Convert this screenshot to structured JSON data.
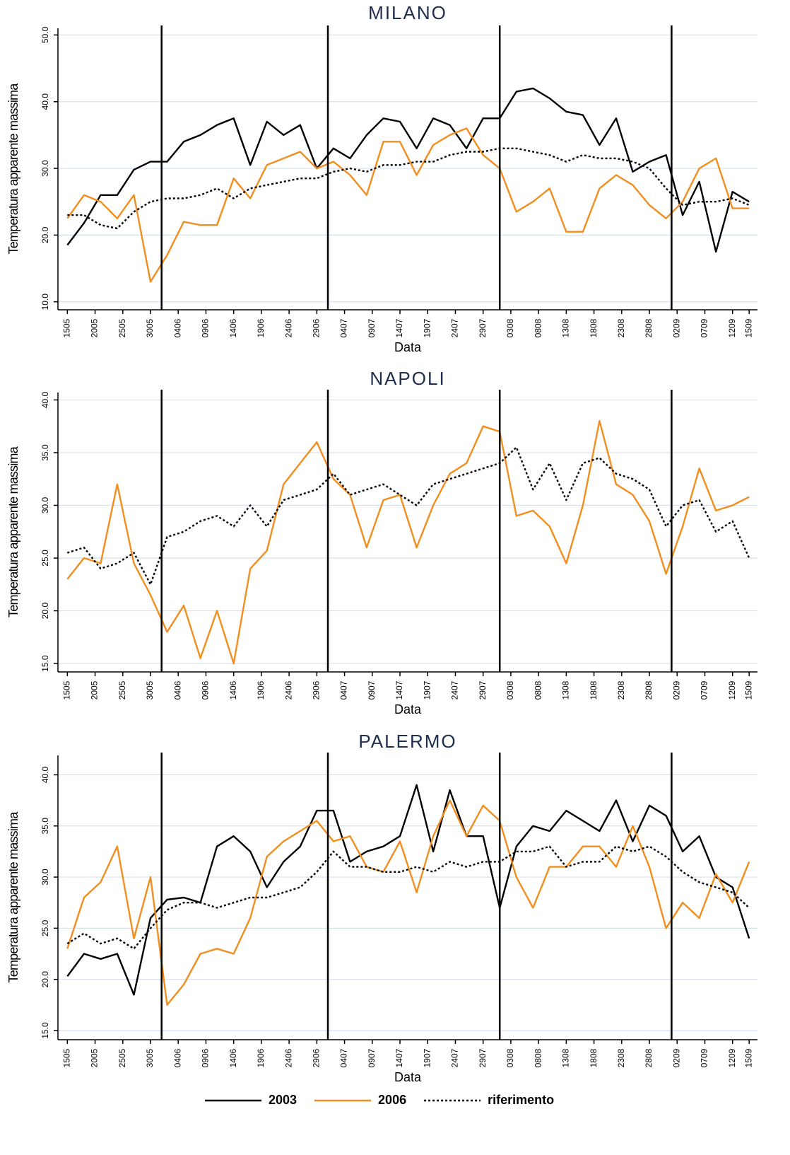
{
  "chart_data": [
    {
      "type": "line",
      "title": "MILANO",
      "xlabel": "Data",
      "ylabel": "Temperatura apparente massima",
      "x": [
        0,
        3,
        6,
        9,
        12,
        15,
        18,
        21,
        24,
        27,
        30,
        33,
        36,
        39,
        42,
        45,
        48,
        51,
        54,
        57,
        60,
        63,
        66,
        69,
        72,
        75,
        78,
        81,
        84,
        87,
        90,
        93,
        96,
        99,
        102,
        105,
        108,
        111,
        114,
        117,
        120,
        123
      ],
      "xlim": [
        -1.7,
        124.5
      ],
      "xticks": [
        {
          "value": 0,
          "label": "1505"
        },
        {
          "value": 5,
          "label": "2005"
        },
        {
          "value": 10,
          "label": "2505"
        },
        {
          "value": 15,
          "label": "3005"
        },
        {
          "value": 20,
          "label": "0406"
        },
        {
          "value": 25,
          "label": "0906"
        },
        {
          "value": 30,
          "label": "1406"
        },
        {
          "value": 35,
          "label": "1906"
        },
        {
          "value": 40,
          "label": "2406"
        },
        {
          "value": 45,
          "label": "2906"
        },
        {
          "value": 50,
          "label": "0407"
        },
        {
          "value": 55,
          "label": "0907"
        },
        {
          "value": 60,
          "label": "1407"
        },
        {
          "value": 65,
          "label": "1907"
        },
        {
          "value": 70,
          "label": "2407"
        },
        {
          "value": 75,
          "label": "2907"
        },
        {
          "value": 80,
          "label": "0308"
        },
        {
          "value": 85,
          "label": "0808"
        },
        {
          "value": 90,
          "label": "1308"
        },
        {
          "value": 95,
          "label": "1808"
        },
        {
          "value": 100,
          "label": "2308"
        },
        {
          "value": 105,
          "label": "2808"
        },
        {
          "value": 110,
          "label": "0209"
        },
        {
          "value": 115,
          "label": "0709"
        },
        {
          "value": 120,
          "label": "1209"
        },
        {
          "value": 123,
          "label": "1509"
        }
      ],
      "ylim": [
        8.8,
        51
      ],
      "yticks": [
        {
          "value": 10,
          "label": "10.0"
        },
        {
          "value": 20,
          "label": "20.0"
        },
        {
          "value": 30,
          "label": "30.0"
        },
        {
          "value": 40,
          "label": "40.0"
        },
        {
          "value": 50,
          "label": "50.0"
        }
      ],
      "grid": true,
      "vlines": [
        17,
        47,
        78,
        109
      ],
      "series": [
        {
          "name": "2003",
          "color": "#000000",
          "style": "solid",
          "values": [
            18.5,
            21.8,
            26,
            26,
            29.8,
            31,
            31,
            34,
            35,
            36.5,
            37.5,
            30.5,
            37,
            35,
            36.5,
            30,
            33,
            31.5,
            35,
            37.5,
            37,
            33,
            37.5,
            36.5,
            33,
            37.5,
            37.5,
            41.5,
            42,
            40.5,
            38.5,
            38,
            33.5,
            37.5,
            29.5,
            31,
            32,
            23,
            28,
            17.5,
            26.5,
            25
          ]
        },
        {
          "name": "2006",
          "color": "#f28e1e",
          "style": "solid",
          "values": [
            22.5,
            26,
            25,
            22.5,
            26,
            13,
            17,
            22,
            21.5,
            21.5,
            28.5,
            25.5,
            30.5,
            31.5,
            32.5,
            30,
            31,
            29,
            26,
            34,
            34,
            29,
            33.5,
            35,
            36,
            32,
            30,
            23.5,
            25,
            27,
            20.5,
            20.5,
            27,
            29,
            27.5,
            24.5,
            22.5,
            25,
            30,
            31.5,
            24,
            24
          ]
        },
        {
          "name": "riferimento",
          "color": "#000000",
          "style": "dotted",
          "values": [
            23,
            23,
            21.5,
            21,
            23.5,
            25,
            25.5,
            25.5,
            26,
            27,
            25.5,
            27,
            27.5,
            28,
            28.5,
            28.5,
            29.5,
            30,
            29.5,
            30.5,
            30.5,
            31,
            31,
            32,
            32.5,
            32.5,
            33,
            33,
            32.5,
            32,
            31,
            32,
            31.5,
            31.5,
            31,
            30,
            27,
            24.5,
            25,
            25,
            25.5,
            24.5
          ]
        }
      ],
      "legend": "bottom"
    },
    {
      "type": "line",
      "title": "NAPOLI",
      "xlabel": "Data",
      "ylabel": "Temperatura apparente massima",
      "x": [
        0,
        3,
        6,
        9,
        12,
        15,
        18,
        21,
        24,
        27,
        30,
        33,
        36,
        39,
        42,
        45,
        48,
        51,
        54,
        57,
        60,
        63,
        66,
        69,
        72,
        75,
        78,
        81,
        84,
        87,
        90,
        93,
        96,
        99,
        102,
        105,
        108,
        111,
        114,
        117,
        120,
        123
      ],
      "xlim": [
        -1.7,
        124.5
      ],
      "xticks": [
        {
          "value": 0,
          "label": "1505"
        },
        {
          "value": 5,
          "label": "2005"
        },
        {
          "value": 10,
          "label": "2505"
        },
        {
          "value": 15,
          "label": "3005"
        },
        {
          "value": 20,
          "label": "0406"
        },
        {
          "value": 25,
          "label": "0906"
        },
        {
          "value": 30,
          "label": "1406"
        },
        {
          "value": 35,
          "label": "1906"
        },
        {
          "value": 40,
          "label": "2406"
        },
        {
          "value": 45,
          "label": "2906"
        },
        {
          "value": 50,
          "label": "0407"
        },
        {
          "value": 55,
          "label": "0907"
        },
        {
          "value": 60,
          "label": "1407"
        },
        {
          "value": 65,
          "label": "1907"
        },
        {
          "value": 70,
          "label": "2407"
        },
        {
          "value": 75,
          "label": "2907"
        },
        {
          "value": 80,
          "label": "0308"
        },
        {
          "value": 85,
          "label": "0808"
        },
        {
          "value": 90,
          "label": "1308"
        },
        {
          "value": 95,
          "label": "1808"
        },
        {
          "value": 100,
          "label": "2308"
        },
        {
          "value": 105,
          "label": "2808"
        },
        {
          "value": 110,
          "label": "0209"
        },
        {
          "value": 115,
          "label": "0709"
        },
        {
          "value": 120,
          "label": "1209"
        },
        {
          "value": 123,
          "label": "1509"
        }
      ],
      "ylim": [
        14.2,
        40.7
      ],
      "yticks": [
        {
          "value": 15,
          "label": "15.0"
        },
        {
          "value": 20,
          "label": "20.0"
        },
        {
          "value": 25,
          "label": "25.0"
        },
        {
          "value": 30,
          "label": "30.0"
        },
        {
          "value": 35,
          "label": "35.0"
        },
        {
          "value": 40,
          "label": "40.0"
        }
      ],
      "grid": true,
      "vlines": [
        17,
        47,
        78,
        109
      ],
      "series": [
        {
          "name": "2006",
          "color": "#f28e1e",
          "style": "solid",
          "values": [
            23,
            25,
            24.5,
            32,
            24.5,
            21.5,
            18,
            20.5,
            15.5,
            20,
            15,
            24,
            25.7,
            32,
            34,
            36,
            32.5,
            31,
            26,
            30.5,
            31,
            26,
            30,
            33,
            34,
            37.5,
            37,
            29,
            29.5,
            28,
            24.5,
            30,
            38,
            32,
            31,
            28.5,
            23.5,
            28,
            33.5,
            29.5,
            30,
            30.8
          ]
        },
        {
          "name": "riferimento",
          "color": "#000000",
          "style": "dotted",
          "values": [
            25.5,
            26,
            24,
            24.5,
            25.5,
            22.5,
            27,
            27.5,
            28.5,
            29,
            28,
            30,
            28,
            30.5,
            31,
            31.5,
            33,
            31,
            31.5,
            32,
            31,
            30,
            32,
            32.5,
            33,
            33.5,
            34,
            35.5,
            31.5,
            34,
            30.5,
            34,
            34.5,
            33,
            32.5,
            31.5,
            28,
            30,
            30.5,
            27.5,
            28.5,
            25
          ]
        }
      ]
    },
    {
      "type": "line",
      "title": "PALERMO",
      "xlabel": "Data",
      "ylabel": "Temperatura apparente massima",
      "x": [
        0,
        3,
        6,
        9,
        12,
        15,
        18,
        21,
        24,
        27,
        30,
        33,
        36,
        39,
        42,
        45,
        48,
        51,
        54,
        57,
        60,
        63,
        66,
        69,
        72,
        75,
        78,
        81,
        84,
        87,
        90,
        93,
        96,
        99,
        102,
        105,
        108,
        111,
        114,
        117,
        120,
        123
      ],
      "xlim": [
        -1.7,
        124.5
      ],
      "xticks": [
        {
          "value": 0,
          "label": "1505"
        },
        {
          "value": 5,
          "label": "2005"
        },
        {
          "value": 10,
          "label": "2505"
        },
        {
          "value": 15,
          "label": "3005"
        },
        {
          "value": 20,
          "label": "0406"
        },
        {
          "value": 25,
          "label": "0906"
        },
        {
          "value": 30,
          "label": "1406"
        },
        {
          "value": 35,
          "label": "1906"
        },
        {
          "value": 40,
          "label": "2406"
        },
        {
          "value": 45,
          "label": "2906"
        },
        {
          "value": 50,
          "label": "0407"
        },
        {
          "value": 55,
          "label": "0907"
        },
        {
          "value": 60,
          "label": "1407"
        },
        {
          "value": 65,
          "label": "1907"
        },
        {
          "value": 70,
          "label": "2407"
        },
        {
          "value": 75,
          "label": "2907"
        },
        {
          "value": 80,
          "label": "0308"
        },
        {
          "value": 85,
          "label": "0808"
        },
        {
          "value": 90,
          "label": "1308"
        },
        {
          "value": 95,
          "label": "1808"
        },
        {
          "value": 100,
          "label": "2308"
        },
        {
          "value": 105,
          "label": "2808"
        },
        {
          "value": 110,
          "label": "0209"
        },
        {
          "value": 115,
          "label": "0709"
        },
        {
          "value": 120,
          "label": "1209"
        },
        {
          "value": 123,
          "label": "1509"
        }
      ],
      "ylim": [
        14.1,
        41.9
      ],
      "yticks": [
        {
          "value": 15,
          "label": "15.0"
        },
        {
          "value": 20,
          "label": "20.0"
        },
        {
          "value": 25,
          "label": "25.0"
        },
        {
          "value": 30,
          "label": "30.0"
        },
        {
          "value": 35,
          "label": "35.0"
        },
        {
          "value": 40,
          "label": "40.0"
        }
      ],
      "grid": true,
      "vlines": [
        17,
        47,
        78,
        109
      ],
      "series": [
        {
          "name": "2003",
          "color": "#000000",
          "style": "solid",
          "values": [
            20.3,
            22.5,
            22,
            22.5,
            18.5,
            26,
            27.8,
            28,
            27.5,
            33,
            34,
            32.5,
            29,
            31.5,
            33,
            36.5,
            36.5,
            31.5,
            32.5,
            33,
            34,
            39,
            32.5,
            38.5,
            34,
            34,
            27,
            33,
            35,
            34.5,
            36.5,
            35.5,
            34.5,
            37.5,
            33.5,
            37,
            36,
            32.5,
            34,
            30,
            29,
            24
          ]
        },
        {
          "name": "2006",
          "color": "#f28e1e",
          "style": "solid",
          "values": [
            23,
            28,
            29.5,
            33,
            24,
            30,
            17.5,
            19.5,
            22.5,
            23,
            22.5,
            26,
            32,
            33.5,
            34.5,
            35.5,
            33.5,
            34,
            31,
            30.5,
            33.5,
            28.5,
            34,
            37.5,
            34,
            37,
            35.5,
            30,
            27,
            31,
            31,
            33,
            33,
            31,
            35,
            31,
            25,
            27.5,
            26,
            30.3,
            27.5,
            31.5
          ]
        },
        {
          "name": "riferimento",
          "color": "#000000",
          "style": "dotted",
          "values": [
            23.5,
            24.5,
            23.5,
            24,
            23,
            25,
            26.8,
            27.5,
            27.5,
            27,
            27.5,
            28,
            28,
            28.5,
            29,
            30.5,
            32.5,
            31,
            31,
            30.5,
            30.5,
            31,
            30.5,
            31.5,
            31,
            31.5,
            31.5,
            32.5,
            32.5,
            33,
            31,
            31.5,
            31.5,
            33,
            32.5,
            33,
            32,
            30.5,
            29.5,
            29,
            28.5,
            27
          ]
        }
      ]
    }
  ]
}
